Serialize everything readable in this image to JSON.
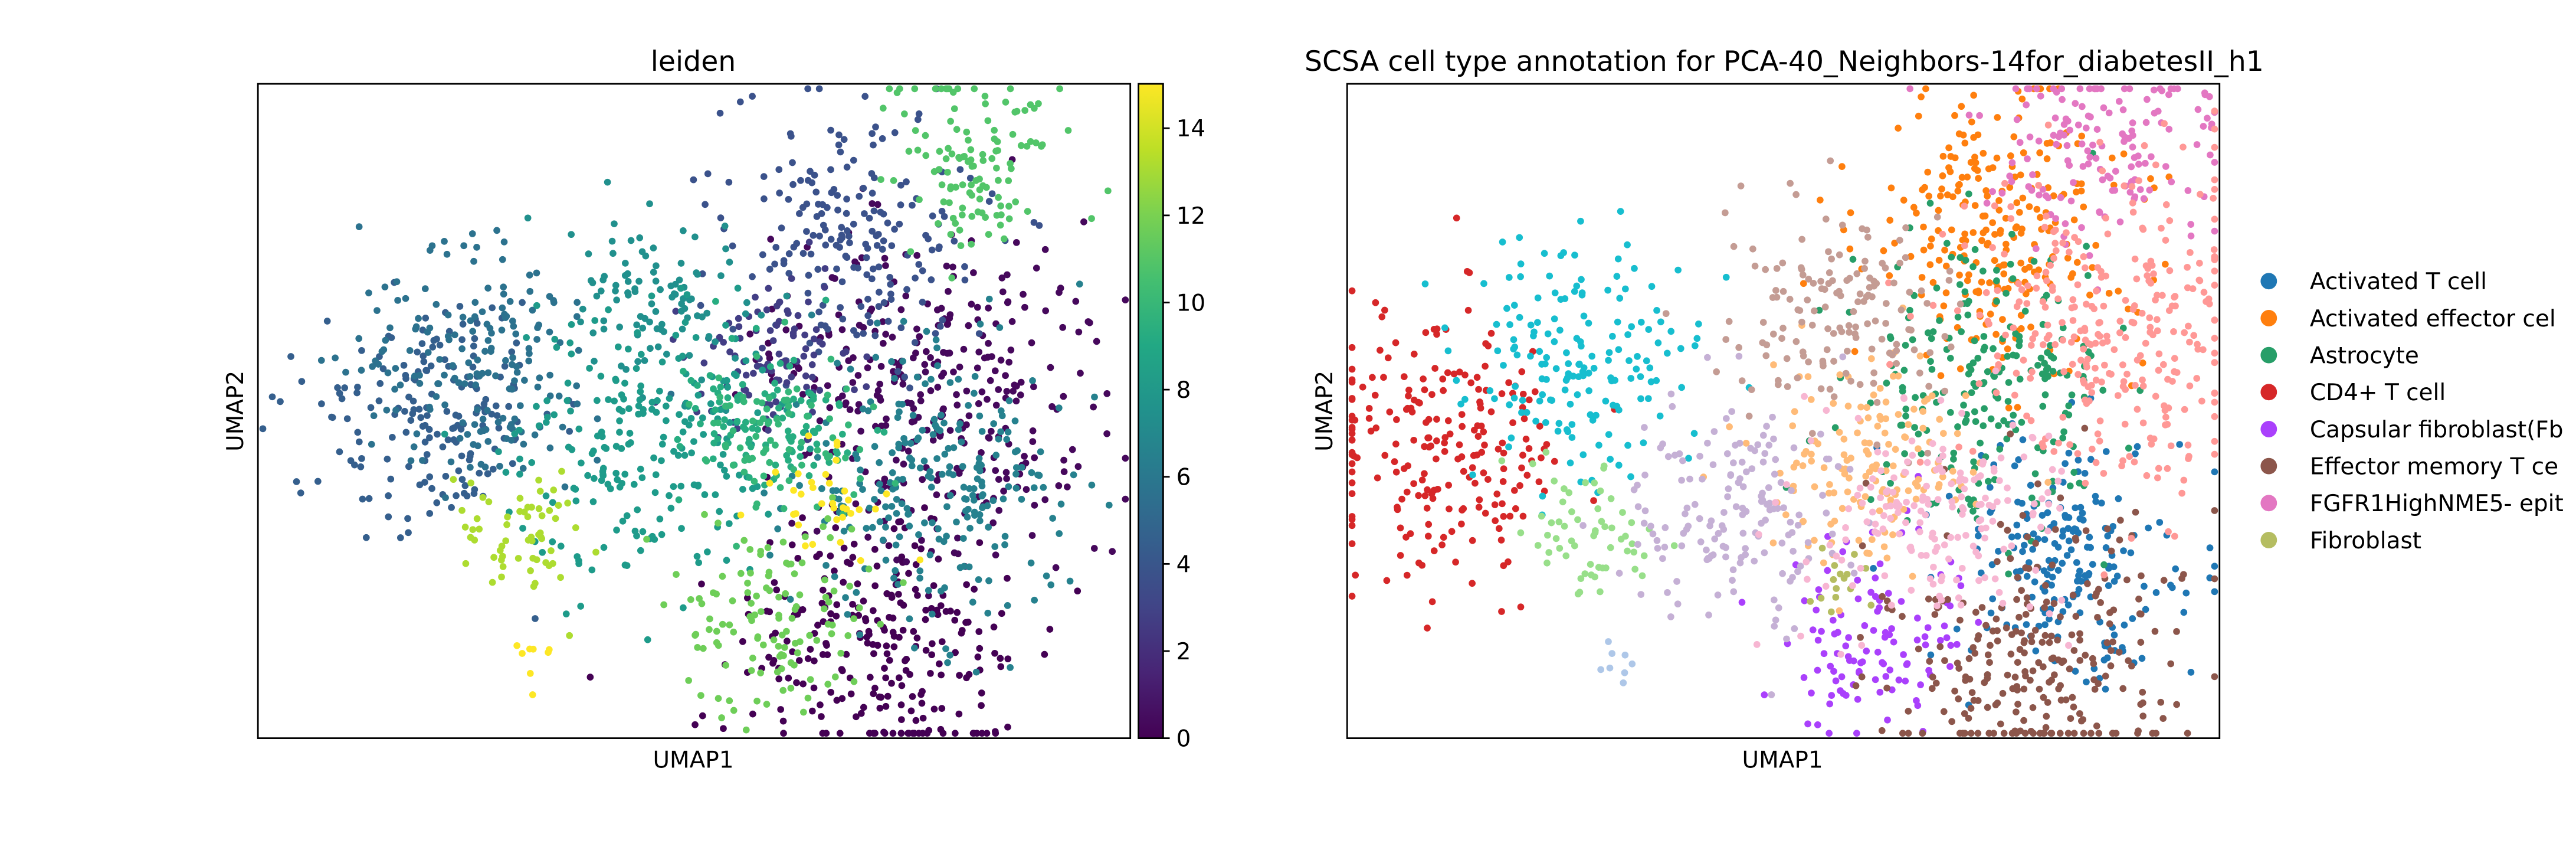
{
  "figure": {
    "panel_left_title": "leiden",
    "panel_right_title": "SCSA cell type annotation for PCA-40_Neighbors-14for_diabetesII_h1",
    "xlabel": "UMAP1",
    "ylabel": "UMAP2"
  },
  "colorbar": {
    "label_0": "0",
    "label_2": "2",
    "label_4": "4",
    "label_6": "6",
    "label_8": "8",
    "label_10": "10",
    "label_12": "12",
    "label_14": "14"
  },
  "chart_data": [
    {
      "type": "scatter",
      "title": "leiden",
      "xlabel": "UMAP1",
      "ylabel": "UMAP2",
      "colorbar": {
        "colormap": "viridis",
        "range": [
          0,
          15
        ],
        "ticks": [
          0,
          2,
          4,
          6,
          8,
          10,
          12,
          14
        ]
      },
      "grid": false,
      "clusters": [
        {
          "id": 0,
          "color": "#440154",
          "center": [
            0.712,
            0.855
          ],
          "size": 260
        },
        {
          "id": 1,
          "color": "#46085c",
          "center": [
            0.78,
            0.47
          ],
          "size": 330
        },
        {
          "id": 2,
          "color": "#3b528b",
          "center": [
            0.68,
            0.23
          ],
          "size": 200
        },
        {
          "id": 3,
          "color": "#433e85",
          "center": [
            0.585,
            0.42
          ],
          "size": 100
        },
        {
          "id": 4,
          "color": "#355f8d",
          "center": [
            0.205,
            0.505
          ],
          "size": 180
        },
        {
          "id": 5,
          "color": "#2c728e",
          "center": [
            0.255,
            0.435
          ],
          "size": 180
        },
        {
          "id": 6,
          "color": "#26818e",
          "center": [
            0.775,
            0.615
          ],
          "size": 250
        },
        {
          "id": 7,
          "color": "#21908d",
          "center": [
            0.46,
            0.33
          ],
          "size": 100
        },
        {
          "id": 8,
          "color": "#1e9b8a",
          "center": [
            0.44,
            0.56
          ],
          "size": 220
        },
        {
          "id": 9,
          "color": "#27ad81",
          "center": [
            0.585,
            0.51
          ],
          "size": 100
        },
        {
          "id": 10,
          "color": "#35b779",
          "center": [
            0.6,
            0.54
          ],
          "size": 80
        },
        {
          "id": 11,
          "color": "#52c569",
          "center": [
            0.82,
            0.12
          ],
          "size": 120
        },
        {
          "id": 12,
          "color": "#6ece58",
          "center": [
            0.595,
            0.825
          ],
          "size": 120
        },
        {
          "id": 13,
          "color": "#addc30",
          "center": [
            0.305,
            0.69
          ],
          "size": 60
        },
        {
          "id": 14,
          "color": "#fde725",
          "center": [
            0.65,
            0.64
          ],
          "size": 35
        },
        {
          "id": 15,
          "color": "#fde725",
          "center": [
            0.305,
            0.88
          ],
          "size": 8
        }
      ]
    },
    {
      "type": "scatter",
      "title": "SCSA cell type annotation for PCA-40_Neighbors-14for_diabetesII_h1",
      "xlabel": "UMAP1",
      "ylabel": "UMAP2",
      "grid": false,
      "legend_position": "right",
      "series": [
        {
          "name": "Activated T cell",
          "color": "#1f77b4",
          "center": [
            0.825,
            0.72
          ],
          "size": 200
        },
        {
          "name": "Activated effector cel",
          "color": "#ff7f0e",
          "center": [
            0.745,
            0.22
          ],
          "size": 250
        },
        {
          "name": "Astrocyte",
          "color": "#279e68",
          "center": [
            0.73,
            0.45
          ],
          "size": 220
        },
        {
          "name": "CD4+ T cell",
          "color": "#d62728",
          "center": [
            0.11,
            0.55
          ],
          "size": 220
        },
        {
          "name": "Capsular fibroblast(Fb",
          "color": "#aa40fc",
          "center": [
            0.6,
            0.85
          ],
          "size": 110
        },
        {
          "name": "Effector memory T ce",
          "color": "#8c564b",
          "center": [
            0.79,
            0.88
          ],
          "size": 260
        },
        {
          "name": "FGFR1HighNME5- epit",
          "color": "#e377c2",
          "center": [
            0.87,
            0.09
          ],
          "size": 150
        },
        {
          "name": "Fibroblast",
          "color": "#b5bd61",
          "center": [
            0.565,
            0.76
          ],
          "size": 15
        },
        {
          "name": "",
          "color": "#17becf",
          "center": [
            0.265,
            0.415
          ],
          "size": 170
        },
        {
          "name": "",
          "color": "#aec7e8",
          "center": [
            0.305,
            0.875
          ],
          "size": 8
        },
        {
          "name": "",
          "color": "#ffbb78",
          "center": [
            0.6,
            0.58
          ],
          "size": 150
        },
        {
          "name": "",
          "color": "#98df8a",
          "center": [
            0.28,
            0.68
          ],
          "size": 60
        },
        {
          "name": "",
          "color": "#ff9896",
          "center": [
            0.88,
            0.39
          ],
          "size": 300
        },
        {
          "name": "",
          "color": "#c5b0d5",
          "center": [
            0.44,
            0.65
          ],
          "size": 160
        },
        {
          "name": "",
          "color": "#c49c94",
          "center": [
            0.56,
            0.35
          ],
          "size": 150
        },
        {
          "name": "",
          "color": "#f7b6d2",
          "center": [
            0.69,
            0.66
          ],
          "size": 180
        }
      ]
    }
  ]
}
